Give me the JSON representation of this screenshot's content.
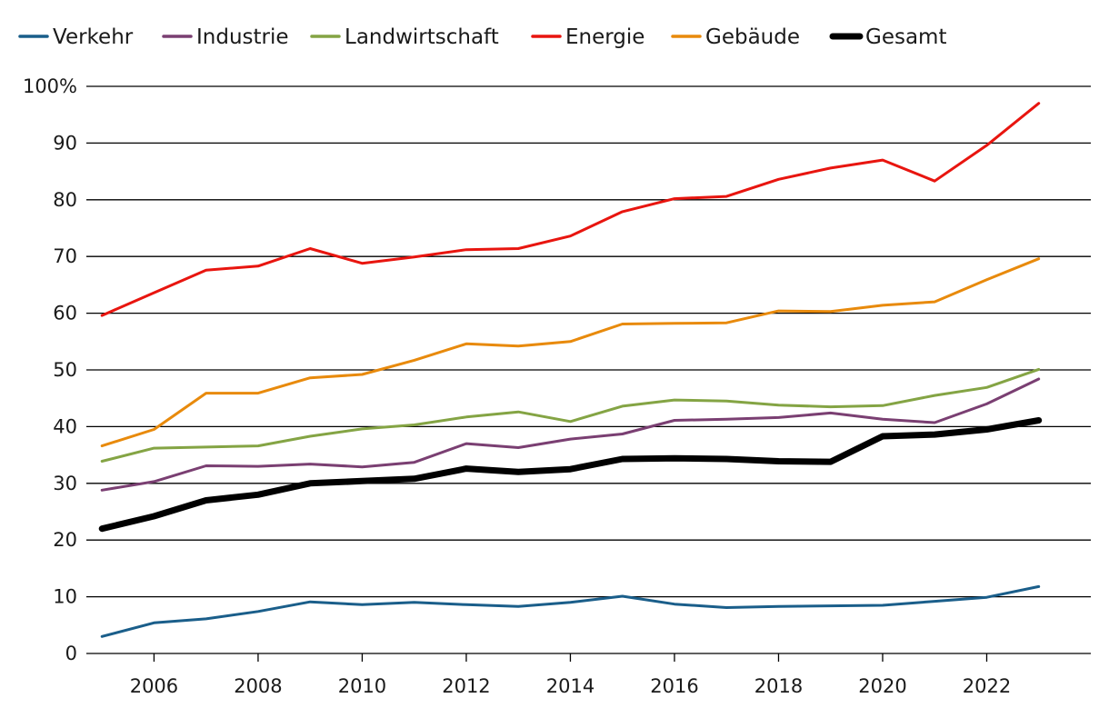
{
  "chart_data": {
    "type": "line",
    "title": "",
    "xlabel": "",
    "ylabel": "",
    "x": [
      2005,
      2006,
      2007,
      2008,
      2009,
      2010,
      2011,
      2012,
      2013,
      2014,
      2015,
      2016,
      2017,
      2018,
      2019,
      2020,
      2021,
      2022,
      2023
    ],
    "xticks": [
      "2006",
      "2008",
      "2010",
      "2012",
      "2014",
      "2016",
      "2018",
      "2020",
      "2022"
    ],
    "xlim": [
      2004.7,
      2024.0
    ],
    "ylim": [
      0,
      100
    ],
    "yticks": [
      "0",
      "10",
      "20",
      "30",
      "40",
      "50",
      "60",
      "70",
      "80",
      "90",
      "100%"
    ],
    "grid": "horizontal",
    "legend": "top",
    "series": [
      {
        "name": "Verkehr",
        "color": "#1a5e8a",
        "width": "normal",
        "values": [
          3.0,
          5.4,
          6.1,
          7.4,
          9.1,
          8.6,
          9.0,
          8.6,
          8.3,
          9.0,
          10.1,
          8.7,
          8.1,
          8.3,
          8.4,
          8.5,
          9.2,
          9.9,
          11.8
        ]
      },
      {
        "name": "Industrie",
        "color": "#7a3f72",
        "width": "normal",
        "values": [
          28.8,
          30.3,
          33.1,
          33.0,
          33.4,
          32.9,
          33.7,
          37.0,
          36.3,
          37.8,
          38.7,
          41.1,
          41.3,
          41.6,
          42.4,
          41.3,
          40.7,
          44.0,
          48.4
        ]
      },
      {
        "name": "Landwirtschaft",
        "color": "#84a444",
        "width": "normal",
        "values": [
          33.9,
          36.2,
          36.4,
          36.6,
          38.3,
          39.6,
          40.3,
          41.7,
          42.6,
          40.9,
          43.6,
          44.7,
          44.5,
          43.8,
          43.5,
          43.7,
          45.5,
          46.9,
          50.1
        ]
      },
      {
        "name": "Energie",
        "color": "#e8150f",
        "width": "normal",
        "values": [
          59.6,
          63.6,
          67.6,
          68.3,
          71.4,
          68.8,
          69.9,
          71.2,
          71.4,
          73.6,
          77.9,
          80.2,
          80.6,
          83.6,
          85.6,
          87.0,
          83.3,
          89.6,
          97.0
        ]
      },
      {
        "name": "Gebäude",
        "color": "#e88a0c",
        "width": "normal",
        "values": [
          36.6,
          39.5,
          45.9,
          45.9,
          48.6,
          49.2,
          51.7,
          54.6,
          54.2,
          55.0,
          58.1,
          58.2,
          58.3,
          60.4,
          60.3,
          61.4,
          62.0,
          65.9,
          69.6
        ]
      },
      {
        "name": "Gesamt",
        "color": "#000000",
        "width": "bold",
        "values": [
          22.0,
          24.2,
          27.0,
          28.0,
          30.0,
          30.4,
          30.8,
          32.6,
          32.0,
          32.5,
          34.3,
          34.4,
          34.3,
          33.9,
          33.8,
          38.3,
          38.6,
          39.5,
          41.1
        ]
      }
    ]
  }
}
